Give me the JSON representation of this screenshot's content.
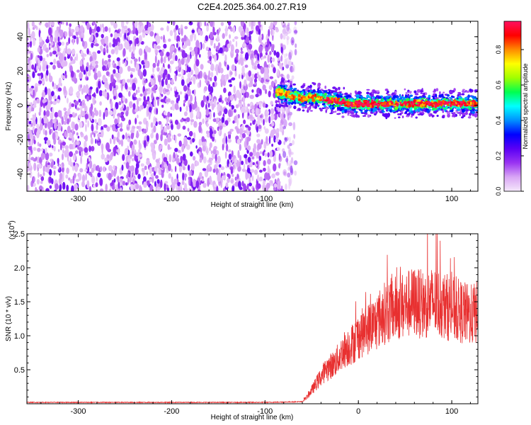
{
  "title": "C2E4.2025.364.00.27.R19",
  "chart_data": [
    {
      "type": "heatmap",
      "name": "spectrogram",
      "xlabel": "Height of straight line (km)",
      "ylabel": "Frequency (Hz)",
      "xlim": [
        -355,
        128
      ],
      "ylim": [
        -50,
        49
      ],
      "xticks": [
        -300,
        -200,
        -100,
        0,
        100
      ],
      "xtick_labels": [
        "-300",
        "-200",
        "-100",
        "0",
        "100"
      ],
      "yticks": [
        -40,
        -20,
        0,
        20,
        40
      ],
      "ytick_labels": [
        "-40",
        "-20",
        "0",
        "20",
        "40"
      ],
      "noise_region_x": [
        -355,
        -75
      ],
      "signal_track": {
        "x": [
          -88,
          -80,
          -70,
          -60,
          -50,
          -40,
          -30,
          -20,
          -10,
          0,
          20,
          40,
          60,
          80,
          100,
          128
        ],
        "y": [
          8,
          7,
          5,
          4,
          5,
          4,
          3,
          2,
          1,
          1,
          1,
          1,
          1,
          1,
          1,
          1
        ]
      },
      "colorbar": {
        "label": "Normalized spectral amplitude",
        "ticks": [
          0.0,
          0.2,
          0.4,
          0.6,
          0.8
        ],
        "tick_labels": [
          "0.0",
          "0.2",
          "0.4",
          "0.6",
          "0.8"
        ],
        "range": [
          0,
          0.96
        ],
        "colors": [
          "#f5e8fb",
          "#d9a6f5",
          "#9a34f2",
          "#5a00f5",
          "#0000ff",
          "#0090ff",
          "#00ffff",
          "#00ff50",
          "#a0ff00",
          "#ffff00",
          "#ff8a00",
          "#ff0000",
          "#ff1060"
        ]
      }
    },
    {
      "type": "line",
      "name": "snr",
      "xlabel": "Height of straight line (km)",
      "ylabel": "SNR (10 * v/v)",
      "y_scale_label": "(x10",
      "y_scale_exponent": "4",
      "xlim": [
        -355,
        128
      ],
      "ylim": [
        0,
        2.5
      ],
      "xticks": [
        -300,
        -200,
        -100,
        0,
        100
      ],
      "xtick_labels": [
        "-300",
        "-200",
        "-100",
        "0",
        "100"
      ],
      "yticks": [
        0.5,
        1.0,
        1.5,
        2.0,
        2.5
      ],
      "ytick_labels": [
        "0.5",
        "1.0",
        "1.5",
        "2.0",
        "2.5"
      ],
      "color": "#e83030",
      "series": [
        {
          "name": "SNR",
          "x": [
            -355,
            -300,
            -200,
            -100,
            -60,
            -55,
            -50,
            -45,
            -40,
            -35,
            -30,
            -25,
            -20,
            -15,
            -10,
            -5,
            0,
            5,
            10,
            15,
            20,
            25,
            30,
            40,
            50,
            60,
            70,
            80,
            90,
            100,
            110,
            120,
            128
          ],
          "y": [
            0.02,
            0.02,
            0.02,
            0.02,
            0.03,
            0.1,
            0.2,
            0.3,
            0.4,
            0.5,
            0.55,
            0.6,
            0.7,
            0.8,
            0.85,
            0.9,
            1.0,
            1.05,
            1.1,
            1.15,
            1.2,
            1.3,
            1.35,
            1.4,
            1.45,
            1.5,
            1.45,
            1.5,
            1.45,
            1.4,
            1.35,
            1.3,
            1.35
          ]
        }
      ]
    }
  ]
}
